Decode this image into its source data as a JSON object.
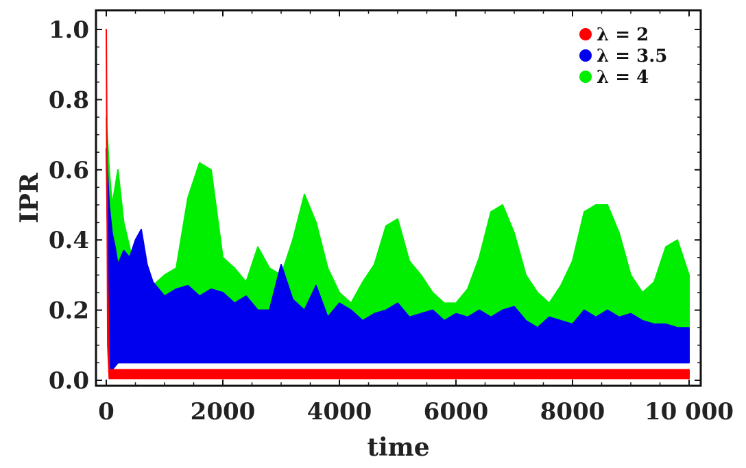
{
  "chart_data": {
    "type": "line",
    "title": "",
    "xlabel": "time",
    "ylabel": "IPR",
    "xlim": [
      0,
      10000
    ],
    "ylim": [
      0,
      1.0
    ],
    "x_ticks": [
      0,
      2000,
      4000,
      6000,
      8000,
      10000
    ],
    "x_tick_labels": [
      "0",
      "2000",
      "4000",
      "6000",
      "8000",
      "10 000"
    ],
    "y_ticks": [
      0.0,
      0.2,
      0.4,
      0.6,
      0.8,
      1.0
    ],
    "y_tick_labels": [
      "0.0",
      "0.2",
      "0.4",
      "0.6",
      "0.8",
      "1.0"
    ],
    "grid": false,
    "legend_position": "top-right",
    "series": [
      {
        "name": "λ = 2",
        "color": "#ff0000",
        "x": [
          0,
          25,
          50,
          100,
          500,
          1000,
          2000,
          3000,
          4000,
          5000,
          6000,
          7000,
          8000,
          9000,
          10000
        ],
        "upper": [
          1.0,
          0.3,
          0.03,
          0.03,
          0.03,
          0.03,
          0.03,
          0.03,
          0.03,
          0.03,
          0.03,
          0.03,
          0.03,
          0.03,
          0.03
        ],
        "lower": [
          1.0,
          0.1,
          0.005,
          0.005,
          0.005,
          0.005,
          0.005,
          0.005,
          0.005,
          0.005,
          0.005,
          0.005,
          0.005,
          0.005,
          0.005
        ]
      },
      {
        "name": "λ = 3.5",
        "color": "#0000ee",
        "x": [
          0,
          50,
          100,
          150,
          200,
          300,
          400,
          500,
          600,
          700,
          800,
          1000,
          1200,
          1400,
          1600,
          1800,
          2000,
          2200,
          2400,
          2600,
          2800,
          3000,
          3200,
          3400,
          3600,
          3800,
          4000,
          4200,
          4400,
          4600,
          4800,
          5000,
          5200,
          5400,
          5600,
          5800,
          6000,
          6200,
          6400,
          6600,
          6800,
          7000,
          7200,
          7400,
          7600,
          7800,
          8000,
          8200,
          8400,
          8600,
          8800,
          9000,
          9200,
          9400,
          9600,
          9800,
          10000
        ],
        "upper": [
          0.66,
          0.5,
          0.42,
          0.38,
          0.33,
          0.37,
          0.35,
          0.4,
          0.43,
          0.33,
          0.28,
          0.24,
          0.26,
          0.27,
          0.24,
          0.26,
          0.25,
          0.22,
          0.24,
          0.2,
          0.2,
          0.33,
          0.23,
          0.2,
          0.27,
          0.18,
          0.22,
          0.2,
          0.17,
          0.19,
          0.2,
          0.22,
          0.18,
          0.19,
          0.2,
          0.17,
          0.19,
          0.18,
          0.2,
          0.18,
          0.2,
          0.21,
          0.17,
          0.15,
          0.18,
          0.17,
          0.16,
          0.2,
          0.18,
          0.2,
          0.18,
          0.19,
          0.17,
          0.16,
          0.16,
          0.15,
          0.15
        ],
        "lower": [
          0.66,
          0.02,
          0.03,
          0.04,
          0.05,
          0.05,
          0.05,
          0.05,
          0.05,
          0.05,
          0.05,
          0.05,
          0.05,
          0.05,
          0.05,
          0.05,
          0.05,
          0.05,
          0.05,
          0.05,
          0.05,
          0.05,
          0.05,
          0.05,
          0.05,
          0.05,
          0.05,
          0.05,
          0.05,
          0.05,
          0.05,
          0.05,
          0.05,
          0.05,
          0.05,
          0.05,
          0.05,
          0.05,
          0.05,
          0.05,
          0.05,
          0.05,
          0.05,
          0.05,
          0.05,
          0.05,
          0.05,
          0.05,
          0.05,
          0.05,
          0.05,
          0.05,
          0.05,
          0.05,
          0.05,
          0.05,
          0.05
        ]
      },
      {
        "name": "λ = 4",
        "color": "#00ee00",
        "x": [
          0,
          50,
          100,
          150,
          200,
          300,
          400,
          500,
          600,
          700,
          800,
          1000,
          1200,
          1400,
          1600,
          1800,
          2000,
          2200,
          2400,
          2600,
          2800,
          3000,
          3200,
          3400,
          3600,
          3800,
          4000,
          4200,
          4400,
          4600,
          4800,
          5000,
          5200,
          5400,
          5600,
          5800,
          6000,
          6200,
          6400,
          6600,
          6800,
          7000,
          7200,
          7400,
          7600,
          7800,
          8000,
          8200,
          8400,
          8600,
          8800,
          9000,
          9200,
          9400,
          9600,
          9800,
          10000
        ],
        "upper": [
          0.75,
          0.6,
          0.5,
          0.55,
          0.6,
          0.45,
          0.38,
          0.3,
          0.35,
          0.3,
          0.27,
          0.3,
          0.32,
          0.52,
          0.62,
          0.6,
          0.35,
          0.32,
          0.28,
          0.38,
          0.32,
          0.3,
          0.4,
          0.53,
          0.45,
          0.32,
          0.25,
          0.22,
          0.28,
          0.33,
          0.44,
          0.46,
          0.34,
          0.3,
          0.25,
          0.22,
          0.22,
          0.26,
          0.35,
          0.48,
          0.5,
          0.42,
          0.3,
          0.25,
          0.22,
          0.27,
          0.34,
          0.48,
          0.5,
          0.5,
          0.42,
          0.3,
          0.25,
          0.28,
          0.38,
          0.4,
          0.3
        ],
        "lower": [
          0.75,
          0.04,
          0.06,
          0.07,
          0.08,
          0.08,
          0.08,
          0.08,
          0.08,
          0.08,
          0.08,
          0.08,
          0.08,
          0.08,
          0.08,
          0.08,
          0.08,
          0.08,
          0.08,
          0.08,
          0.08,
          0.08,
          0.08,
          0.08,
          0.08,
          0.08,
          0.08,
          0.08,
          0.08,
          0.08,
          0.08,
          0.08,
          0.08,
          0.08,
          0.08,
          0.08,
          0.08,
          0.08,
          0.08,
          0.08,
          0.08,
          0.08,
          0.08,
          0.08,
          0.08,
          0.08,
          0.08,
          0.08,
          0.08,
          0.08,
          0.08,
          0.08,
          0.08,
          0.08,
          0.08,
          0.08,
          0.08
        ]
      }
    ]
  }
}
